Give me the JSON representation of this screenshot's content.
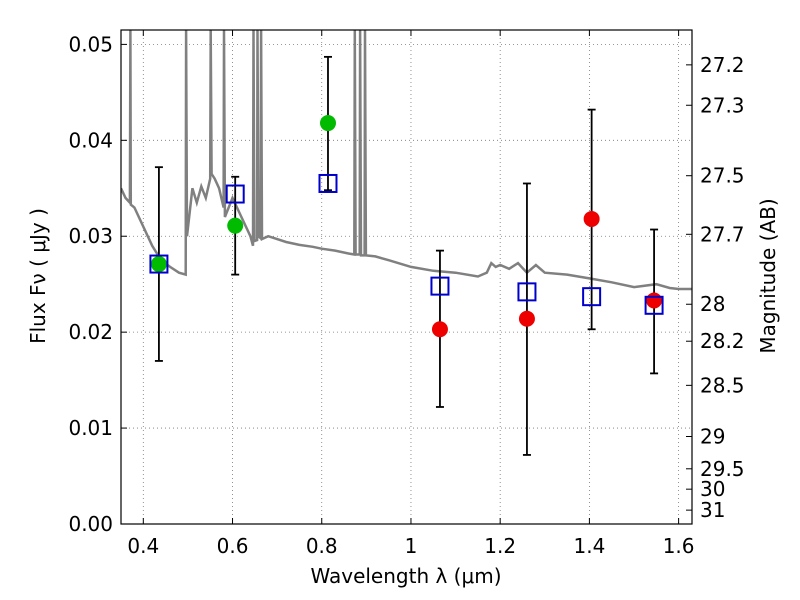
{
  "chart_data": {
    "type": "scatter",
    "xlabel": "Wavelength  λ (μm)",
    "ylabel": "Flux  Fν  ( μJy )",
    "y2label": "Magnitude (AB)",
    "xlim": [
      0.35,
      1.63
    ],
    "ylim": [
      0.0,
      0.0515
    ],
    "grid": true,
    "x_ticks": [
      0.4,
      0.6,
      0.8,
      1.0,
      1.2,
      1.4,
      1.6
    ],
    "x_tick_labels": [
      "0.4",
      "0.6",
      "0.8",
      "1",
      "1.2",
      "1.4",
      "1.6"
    ],
    "y_ticks": [
      0.0,
      0.01,
      0.02,
      0.03,
      0.04,
      0.05
    ],
    "y_tick_labels": [
      "0.00",
      "0.01",
      "0.02",
      "0.03",
      "0.04",
      "0.05"
    ],
    "mag_ticks": [
      27.2,
      27.3,
      27.5,
      27.7,
      28,
      28.2,
      28.5,
      29,
      29.5,
      30,
      31
    ],
    "mag_tick_labels": [
      "27.2",
      "27.3",
      "27.5",
      "27.7",
      "28",
      "28.2",
      "28.5",
      "29",
      "29.5",
      "30",
      "31"
    ],
    "colors": {
      "model": "#808080",
      "optical": "#00bb00",
      "nir": "#ee0000",
      "model_phot": "#0000cc",
      "errorbar": "#000000"
    },
    "series": [
      {
        "marker": "circle",
        "color": "#00bb00",
        "points": [
          {
            "x": 0.435,
            "y": 0.0271,
            "err_low": 0.017,
            "err_high": 0.0372
          },
          {
            "x": 0.606,
            "y": 0.0311,
            "err_low": 0.026,
            "err_high": 0.0362
          },
          {
            "x": 0.814,
            "y": 0.0418,
            "err_low": 0.0348,
            "err_high": 0.0487
          }
        ]
      },
      {
        "marker": "circle",
        "color": "#ee0000",
        "points": [
          {
            "x": 1.065,
            "y": 0.0203,
            "err_low": 0.0122,
            "err_high": 0.0285
          },
          {
            "x": 1.26,
            "y": 0.0214,
            "err_low": 0.0072,
            "err_high": 0.0355
          },
          {
            "x": 1.405,
            "y": 0.0318,
            "err_low": 0.0203,
            "err_high": 0.0432
          },
          {
            "x": 1.545,
            "y": 0.0233,
            "err_low": 0.0157,
            "err_high": 0.0307
          }
        ]
      },
      {
        "marker": "open-square",
        "color": "#0000cc",
        "points": [
          {
            "x": 0.435,
            "y": 0.0271
          },
          {
            "x": 0.606,
            "y": 0.0344
          },
          {
            "x": 0.814,
            "y": 0.0355
          },
          {
            "x": 1.065,
            "y": 0.0248
          },
          {
            "x": 1.26,
            "y": 0.0242
          },
          {
            "x": 1.405,
            "y": 0.0237
          },
          {
            "x": 1.545,
            "y": 0.0228
          }
        ]
      },
      {
        "marker": "line",
        "color": "#808080",
        "points": [
          {
            "x": 0.35,
            "y": 0.035
          },
          {
            "x": 0.36,
            "y": 0.034
          },
          {
            "x": 0.37,
            "y": 0.0335
          },
          {
            "x": 0.371,
            "y": 0.0515
          },
          {
            "x": 0.372,
            "y": 0.0333
          },
          {
            "x": 0.38,
            "y": 0.033
          },
          {
            "x": 0.4,
            "y": 0.031
          },
          {
            "x": 0.42,
            "y": 0.029
          },
          {
            "x": 0.44,
            "y": 0.0275
          },
          {
            "x": 0.46,
            "y": 0.0268
          },
          {
            "x": 0.48,
            "y": 0.0262
          },
          {
            "x": 0.495,
            "y": 0.026
          },
          {
            "x": 0.496,
            "y": 0.0515
          },
          {
            "x": 0.498,
            "y": 0.03
          },
          {
            "x": 0.51,
            "y": 0.035
          },
          {
            "x": 0.52,
            "y": 0.0335
          },
          {
            "x": 0.53,
            "y": 0.0352
          },
          {
            "x": 0.54,
            "y": 0.034
          },
          {
            "x": 0.55,
            "y": 0.036
          },
          {
            "x": 0.551,
            "y": 0.0515
          },
          {
            "x": 0.553,
            "y": 0.0365
          },
          {
            "x": 0.56,
            "y": 0.036
          },
          {
            "x": 0.57,
            "y": 0.035
          },
          {
            "x": 0.58,
            "y": 0.033
          },
          {
            "x": 0.581,
            "y": 0.0515
          },
          {
            "x": 0.583,
            "y": 0.032
          },
          {
            "x": 0.6,
            "y": 0.034
          },
          {
            "x": 0.62,
            "y": 0.032
          },
          {
            "x": 0.64,
            "y": 0.03
          },
          {
            "x": 0.646,
            "y": 0.029
          },
          {
            "x": 0.647,
            "y": 0.0515
          },
          {
            "x": 0.649,
            "y": 0.0295
          },
          {
            "x": 0.655,
            "y": 0.0296
          },
          {
            "x": 0.656,
            "y": 0.0515
          },
          {
            "x": 0.658,
            "y": 0.03
          },
          {
            "x": 0.663,
            "y": 0.0298
          },
          {
            "x": 0.664,
            "y": 0.0515
          },
          {
            "x": 0.666,
            "y": 0.0297
          },
          {
            "x": 0.68,
            "y": 0.03
          },
          {
            "x": 0.7,
            "y": 0.0297
          },
          {
            "x": 0.72,
            "y": 0.0294
          },
          {
            "x": 0.75,
            "y": 0.0291
          },
          {
            "x": 0.78,
            "y": 0.0289
          },
          {
            "x": 0.8,
            "y": 0.0287
          },
          {
            "x": 0.83,
            "y": 0.0285
          },
          {
            "x": 0.86,
            "y": 0.0282
          },
          {
            "x": 0.873,
            "y": 0.0281
          },
          {
            "x": 0.874,
            "y": 0.0515
          },
          {
            "x": 0.876,
            "y": 0.0281
          },
          {
            "x": 0.885,
            "y": 0.0281
          },
          {
            "x": 0.886,
            "y": 0.0515
          },
          {
            "x": 0.888,
            "y": 0.028
          },
          {
            "x": 0.896,
            "y": 0.028
          },
          {
            "x": 0.897,
            "y": 0.0515
          },
          {
            "x": 0.899,
            "y": 0.028
          },
          {
            "x": 0.92,
            "y": 0.0279
          },
          {
            "x": 0.95,
            "y": 0.0275
          },
          {
            "x": 1.0,
            "y": 0.0268
          },
          {
            "x": 1.05,
            "y": 0.0264
          },
          {
            "x": 1.1,
            "y": 0.0262
          },
          {
            "x": 1.15,
            "y": 0.0258
          },
          {
            "x": 1.17,
            "y": 0.0262
          },
          {
            "x": 1.18,
            "y": 0.0272
          },
          {
            "x": 1.19,
            "y": 0.0268
          },
          {
            "x": 1.2,
            "y": 0.027
          },
          {
            "x": 1.22,
            "y": 0.0266
          },
          {
            "x": 1.24,
            "y": 0.0272
          },
          {
            "x": 1.26,
            "y": 0.0262
          },
          {
            "x": 1.28,
            "y": 0.027
          },
          {
            "x": 1.3,
            "y": 0.0262
          },
          {
            "x": 1.35,
            "y": 0.026
          },
          {
            "x": 1.4,
            "y": 0.0256
          },
          {
            "x": 1.45,
            "y": 0.0252
          },
          {
            "x": 1.5,
            "y": 0.0247
          },
          {
            "x": 1.55,
            "y": 0.025
          },
          {
            "x": 1.58,
            "y": 0.0246
          },
          {
            "x": 1.6,
            "y": 0.0245
          },
          {
            "x": 1.63,
            "y": 0.0245
          }
        ]
      }
    ]
  }
}
